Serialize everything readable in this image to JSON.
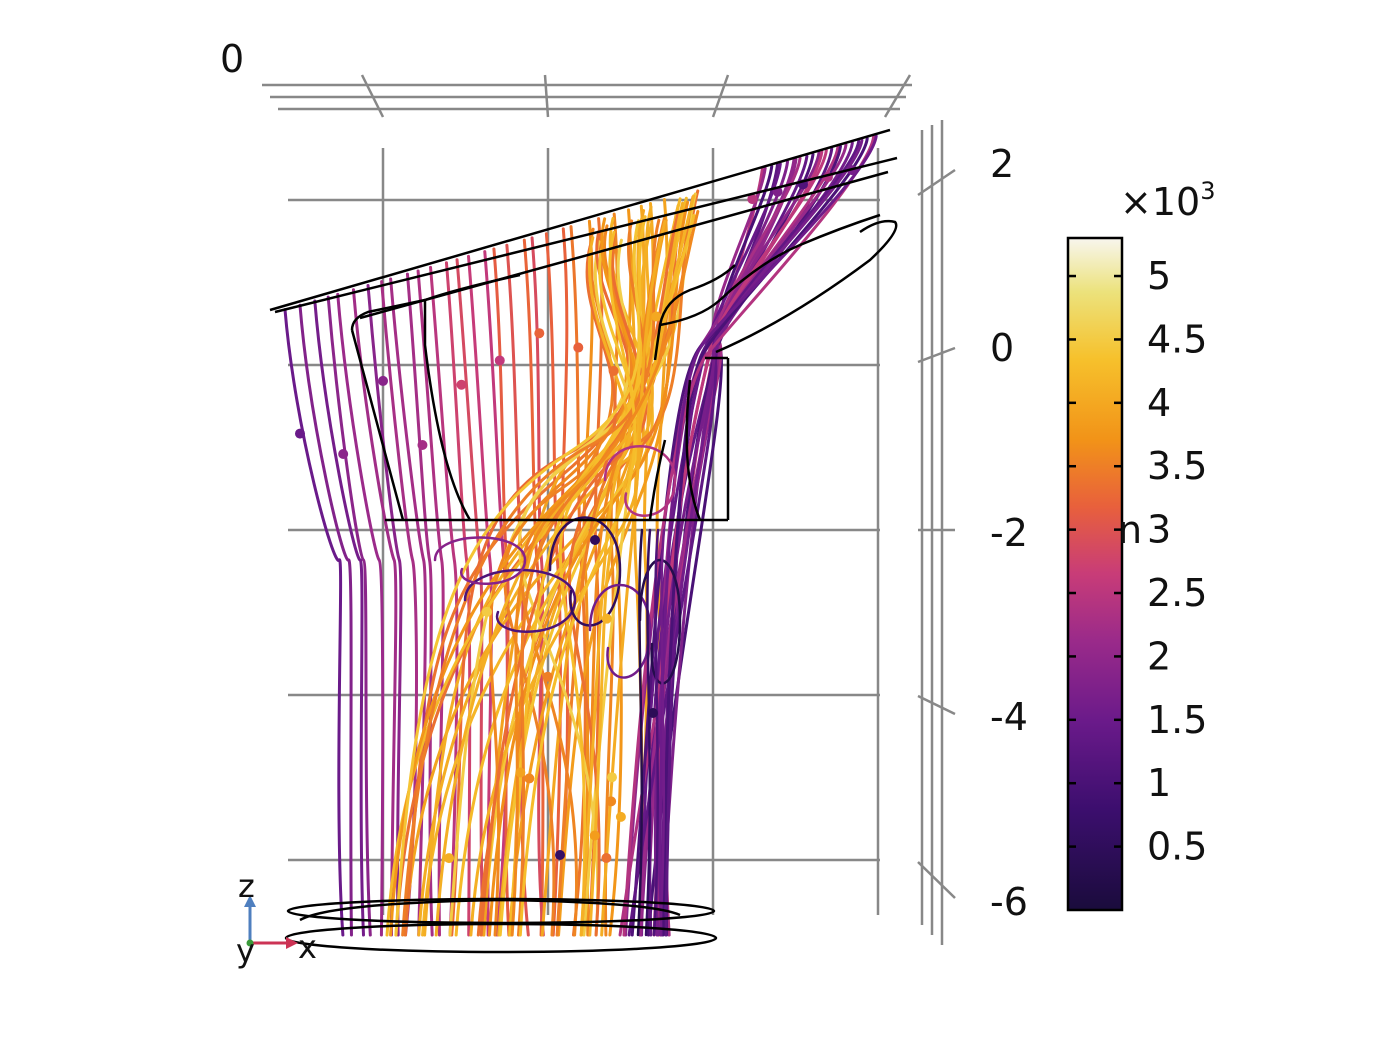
{
  "chart_data": {
    "type": "streamline-3d",
    "title": "",
    "z_axis": {
      "ticks": [
        "2",
        "0",
        "-2",
        "-4",
        "-6"
      ],
      "values": [
        2,
        0,
        -2,
        -4,
        -6
      ],
      "range": [
        -6.8,
        2.6
      ]
    },
    "top_axis": {
      "ticks": [
        "0"
      ]
    },
    "grid": true,
    "colorbar": {
      "multiplier": "×10",
      "exponent": "3",
      "ticks": [
        "5",
        "4.5",
        "4",
        "3.5",
        "3",
        "2.5",
        "2",
        "1.5",
        "1",
        "0.5"
      ],
      "values": [
        5,
        4.5,
        4,
        3.5,
        3,
        2.5,
        2,
        1.5,
        1,
        0.5
      ],
      "range": [
        0,
        5.3
      ],
      "colormap": "inferno",
      "side_label_fragment": "n"
    },
    "triad": {
      "labels": [
        "z",
        "y",
        "x"
      ],
      "colors": {
        "z": "#4f7fbf",
        "x": "#cc3355",
        "origin": "#3a9a3a"
      }
    }
  }
}
